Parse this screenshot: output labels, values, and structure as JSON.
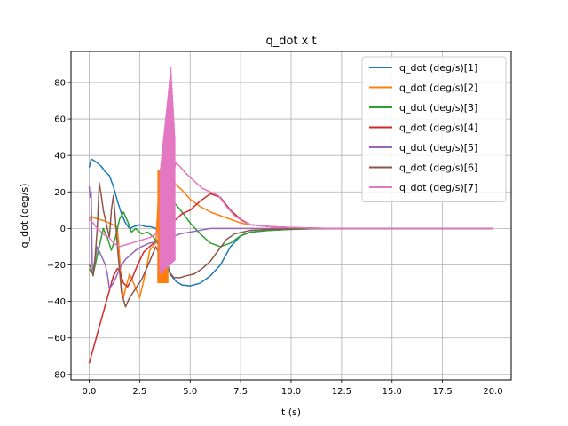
{
  "chart_data": {
    "type": "line",
    "title": "q_dot x t",
    "xlabel": "t (s)",
    "ylabel": "q_dot (deg/s)",
    "xlim": [
      -0.9,
      20.9
    ],
    "ylim": [
      -83,
      97
    ],
    "xticks": [
      0.0,
      2.5,
      5.0,
      7.5,
      10.0,
      12.5,
      15.0,
      17.5,
      20.0
    ],
    "xtick_labels": [
      "0.0",
      "2.5",
      "5.0",
      "7.5",
      "10.0",
      "12.5",
      "15.0",
      "17.5",
      "20.0"
    ],
    "yticks": [
      -80,
      -60,
      -40,
      -20,
      0,
      20,
      40,
      60,
      80
    ],
    "ytick_labels": [
      "−80",
      "−60",
      "−40",
      "−20",
      "0",
      "20",
      "40",
      "60",
      "80"
    ],
    "grid": true,
    "legend_position": "upper right",
    "series": [
      {
        "name": "q_dot (deg/s)[1]",
        "color": "#1f77b4",
        "x": [
          0,
          0.1,
          0.2,
          0.4,
          0.6,
          0.8,
          1.0,
          1.2,
          1.4,
          1.6,
          1.8,
          2.0,
          2.2,
          2.5,
          2.8,
          3.0,
          3.3,
          3.5,
          3.8,
          4.0,
          4.3,
          4.6,
          5.0,
          5.5,
          6.0,
          6.5,
          7.0,
          7.5,
          8.0,
          9.0,
          10.0,
          11.0,
          12.0,
          14.0,
          16.0,
          18.0,
          20.0
        ],
        "y": [
          33.5,
          38,
          37.5,
          36,
          34,
          31,
          29,
          23,
          15,
          8,
          3,
          0,
          1,
          2,
          1,
          1,
          0,
          -5,
          -15,
          -25,
          -29,
          -31,
          -31.5,
          -30,
          -26,
          -20,
          -10,
          -4,
          -2,
          -1,
          -0.5,
          -0.2,
          0,
          0,
          0,
          0,
          0
        ]
      },
      {
        "name": "q_dot (deg/s)[2]",
        "color": "#ff7f0e",
        "x": [
          0,
          0.1,
          0.2,
          0.5,
          0.8,
          1.0,
          1.2,
          1.4,
          1.5,
          1.6,
          1.7,
          1.8,
          2.0,
          2.2,
          2.5,
          2.8,
          3.0,
          3.3,
          3.5,
          3.7,
          3.9,
          4.1,
          4.3,
          4.6,
          5.0,
          5.5,
          6.0,
          6.5,
          7.0,
          7.5,
          8.0,
          9.0,
          10.0,
          11.0,
          12.0,
          14.0,
          16.0,
          18.0,
          20.0
        ],
        "y": [
          5,
          7,
          6,
          5,
          4,
          3,
          2,
          0,
          -15,
          -30,
          -38,
          -33,
          -25,
          -30,
          -38,
          -24,
          -12,
          -8,
          30,
          31,
          25,
          26,
          24,
          21,
          16,
          12,
          9,
          7,
          5,
          3,
          2,
          1,
          0.5,
          0.2,
          0,
          0,
          0,
          0,
          0
        ]
      },
      {
        "name": "q_dot (deg/s)[3]",
        "color": "#2ca02c",
        "x": [
          0,
          0.1,
          0.2,
          0.3,
          0.5,
          0.7,
          0.9,
          1.1,
          1.3,
          1.5,
          1.7,
          1.9,
          2.1,
          2.3,
          2.6,
          2.9,
          3.2,
          3.5,
          3.8,
          4.0,
          4.3,
          4.6,
          5.0,
          5.5,
          6.0,
          6.5,
          7.0,
          7.5,
          8.0,
          9.0,
          10.0,
          11.0,
          12.0,
          14.0,
          16.0,
          18.0,
          20.0
        ],
        "y": [
          -22,
          -24,
          -25,
          -20,
          -10,
          0,
          -5,
          -12,
          -5,
          5,
          9,
          4,
          -2,
          0,
          -3,
          -2,
          -5,
          -10,
          5,
          15,
          13,
          9,
          3,
          -3,
          -8,
          -10,
          -8,
          -4,
          -2,
          -1,
          -0.5,
          -0.2,
          0,
          0,
          0,
          0,
          0
        ]
      },
      {
        "name": "q_dot (deg/s)[4]",
        "color": "#d62728",
        "x": [
          0,
          0.2,
          0.4,
          0.6,
          0.8,
          1.0,
          1.2,
          1.3,
          1.4,
          1.5,
          1.7,
          1.9,
          2.1,
          2.4,
          2.7,
          3.0,
          3.3,
          3.5,
          3.8,
          4.0,
          4.3,
          4.6,
          5.0,
          5.5,
          6.0,
          6.5,
          7.0,
          7.5,
          8.0,
          9.0,
          10.0,
          11.0,
          12.0,
          14.0,
          16.0,
          18.0,
          20.0
        ],
        "y": [
          -74,
          -66,
          -58,
          -50,
          -42,
          -34,
          -26,
          -24,
          -22,
          -23,
          -30,
          -32,
          -28,
          -20,
          -13,
          -10,
          -7,
          -6,
          -5,
          3,
          5,
          8,
          10,
          15,
          19,
          17,
          10,
          5,
          2,
          1,
          0.5,
          0.2,
          0,
          0,
          0,
          0,
          0
        ]
      },
      {
        "name": "q_dot (deg/s)[5]",
        "color": "#9467bd",
        "x": [
          0,
          0.05,
          0.1,
          0.15,
          0.2,
          0.4,
          0.6,
          0.8,
          0.9,
          1.0,
          1.2,
          1.4,
          1.6,
          1.8,
          2.0,
          2.3,
          2.6,
          3.0,
          3.5,
          4.0,
          4.5,
          5.0,
          5.5,
          6.0,
          6.5,
          7.0,
          7.5,
          8.0,
          9.0,
          10.0,
          11.0,
          12.0,
          14.0,
          16.0,
          18.0,
          20.0
        ],
        "y": [
          23,
          17,
          20,
          -20,
          -23,
          -10,
          -15,
          -20,
          -25,
          -33,
          -30,
          -25,
          -20,
          -17,
          -15,
          -12,
          -10,
          -8,
          -7,
          -5,
          -3,
          -2,
          -1,
          0,
          0,
          0,
          0,
          0,
          0,
          0,
          0,
          0,
          0,
          0,
          0,
          0
        ]
      },
      {
        "name": "q_dot (deg/s)[6]",
        "color": "#8c564b",
        "x": [
          0,
          0.1,
          0.2,
          0.3,
          0.4,
          0.5,
          0.6,
          0.7,
          0.8,
          0.9,
          1.0,
          1.1,
          1.2,
          1.3,
          1.4,
          1.6,
          1.8,
          2.0,
          2.3,
          2.6,
          3.0,
          3.3,
          3.6,
          3.9,
          4.2,
          4.5,
          4.8,
          5.2,
          5.6,
          6.0,
          6.4,
          6.8,
          7.2,
          7.6,
          8.0,
          9.0,
          10.0,
          11.0,
          12.0,
          14.0,
          16.0,
          18.0,
          20.0
        ],
        "y": [
          -20,
          -22,
          -26,
          -15,
          0,
          25,
          18,
          10,
          5,
          0,
          -5,
          10,
          18,
          5,
          -10,
          -35,
          -43,
          -38,
          -33,
          -28,
          -18,
          -10,
          -17,
          -23,
          -27,
          -27,
          -26,
          -25,
          -22,
          -18,
          -12,
          -6,
          -3,
          -2,
          -1,
          -0.5,
          -0.2,
          0,
          0,
          0,
          0,
          0,
          0
        ]
      },
      {
        "name": "q_dot (deg/s)[7]",
        "color": "#e377c2",
        "x": [
          0,
          0.2,
          0.4,
          0.6,
          0.8,
          1.0,
          1.2,
          1.5,
          1.8,
          2.1,
          2.4,
          2.7,
          3.0,
          3.3,
          3.5,
          3.7,
          3.9,
          4.1,
          4.3,
          4.5,
          4.8,
          5.2,
          5.6,
          6.0,
          6.4,
          6.8,
          7.2,
          7.6,
          8.0,
          9.0,
          10.0,
          11.0,
          12.0,
          14.0,
          16.0,
          18.0,
          20.0
        ],
        "y": [
          5,
          3,
          0,
          -2,
          -4,
          -5,
          -8,
          -10,
          -9,
          -8,
          -7,
          -6,
          -5,
          -3,
          0,
          5,
          15,
          28,
          36,
          34,
          30,
          26,
          22,
          20,
          18,
          12,
          7,
          4,
          2,
          1,
          0.5,
          0.2,
          0,
          0,
          0,
          0,
          0
        ]
      }
    ]
  }
}
